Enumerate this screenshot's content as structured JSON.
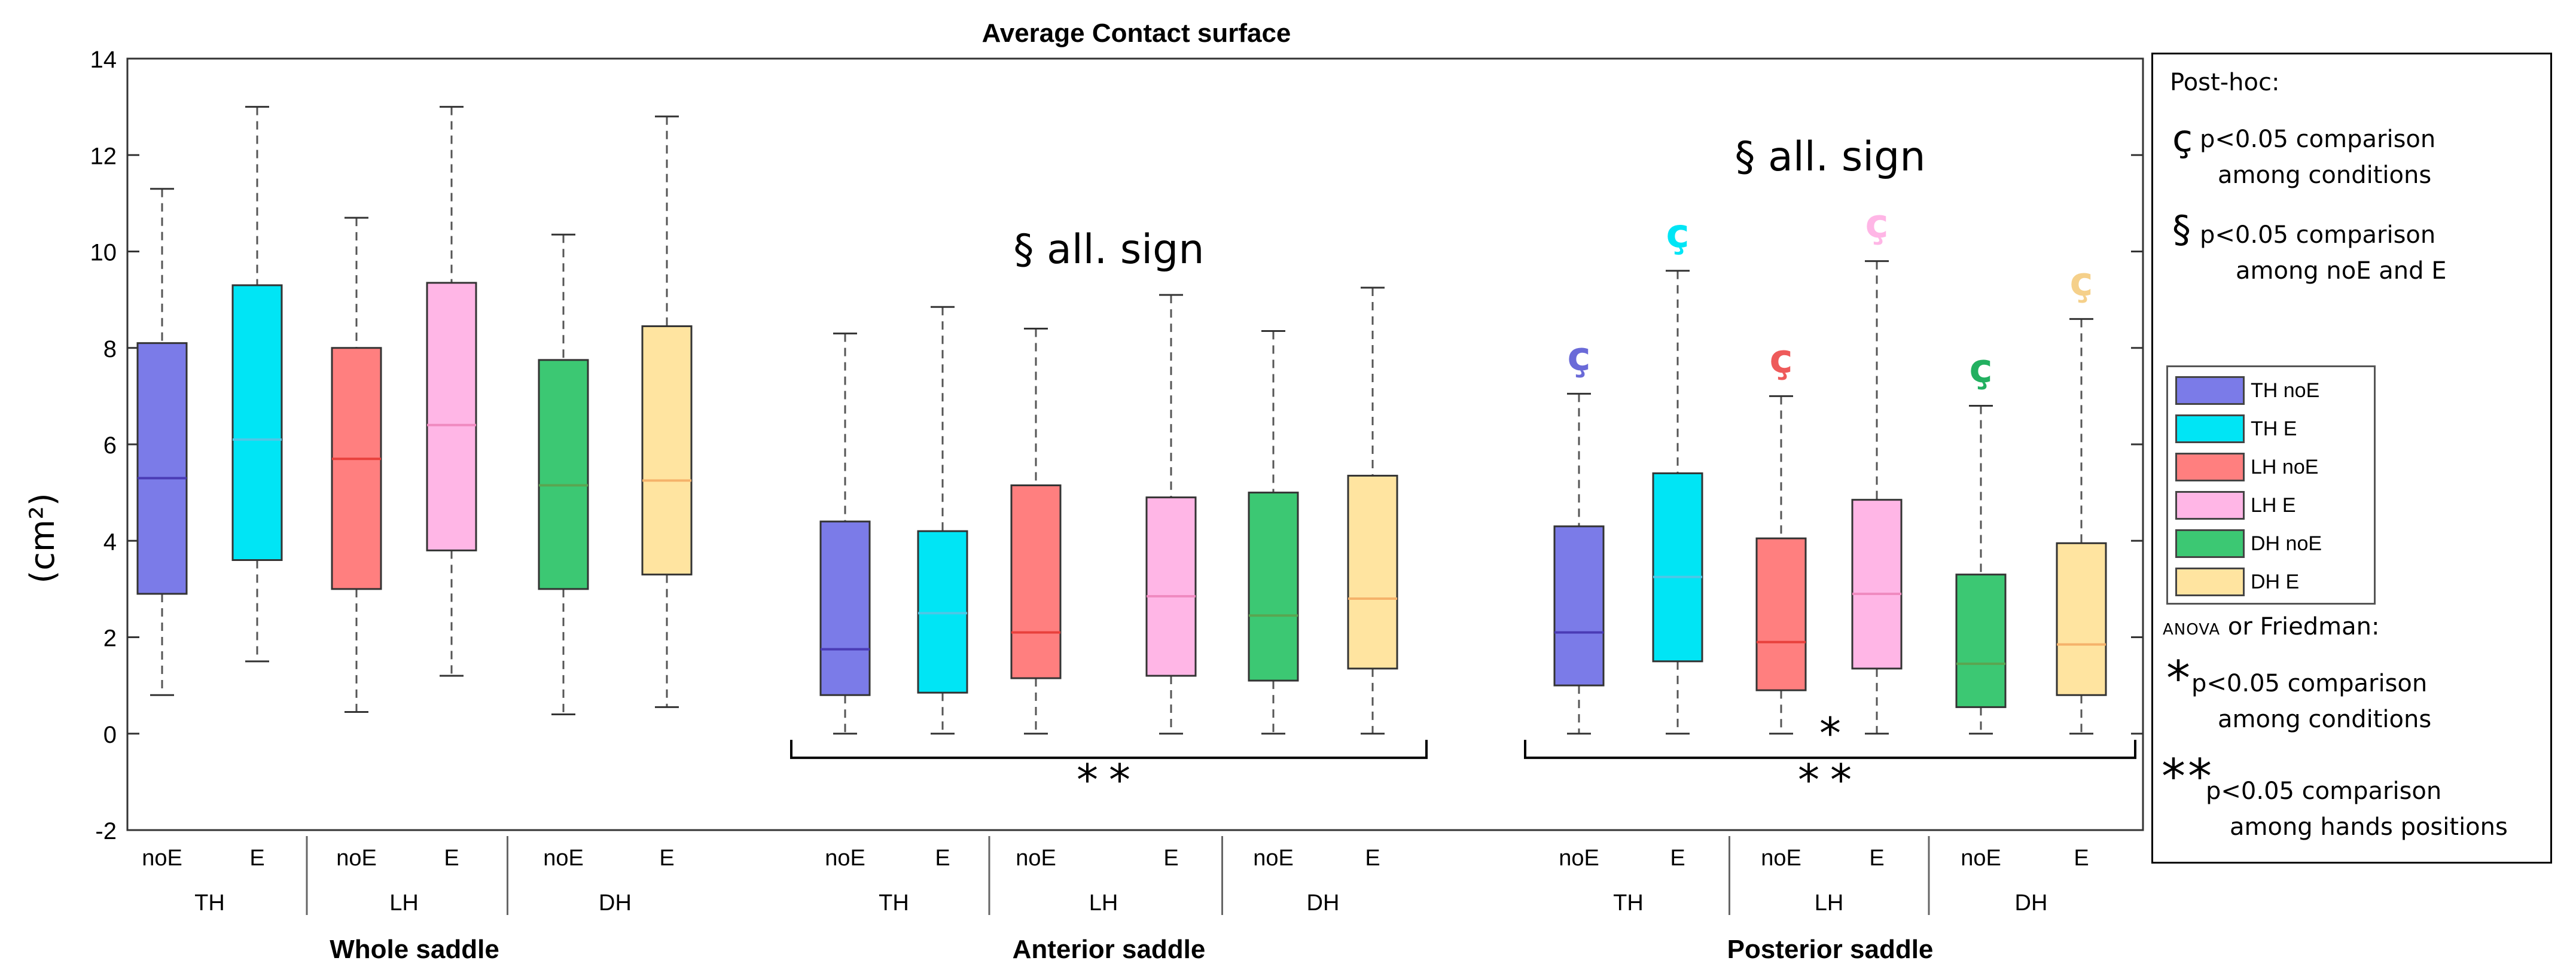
{
  "chart_data": {
    "type": "box",
    "title": "Average Contact surface",
    "ylabel": "(cm²)",
    "ylim": [
      -2,
      14
    ],
    "yticks": [
      -2,
      0,
      2,
      4,
      6,
      8,
      10,
      12,
      14
    ],
    "condition_labels": [
      "noE",
      "E"
    ],
    "position_labels": [
      "TH",
      "LH",
      "DH"
    ],
    "series_names": [
      "TH noE",
      "TH E",
      "LH noE",
      "LH E",
      "DH noE",
      "DH E"
    ],
    "series_colors": [
      "#7b7be8",
      "#00e5f5",
      "#ff7f7f",
      "#ffb6e6",
      "#3cc873",
      "#ffe4a0"
    ],
    "median_colors": [
      "#4a3bb5",
      "#4ec7e6",
      "#e8403c",
      "#f08ac0",
      "#5aa550",
      "#f5b26a"
    ],
    "groups": [
      {
        "label": "Whole saddle",
        "boxes": [
          {
            "min": 0.8,
            "q1": 2.9,
            "median": 5.3,
            "q3": 8.1,
            "max": 11.3
          },
          {
            "min": 1.5,
            "q1": 3.6,
            "median": 6.1,
            "q3": 9.3,
            "max": 13.0
          },
          {
            "min": 0.45,
            "q1": 3.0,
            "median": 5.7,
            "q3": 8.0,
            "max": 10.7
          },
          {
            "min": 1.2,
            "q1": 3.8,
            "median": 6.4,
            "q3": 9.35,
            "max": 13.0
          },
          {
            "min": 0.4,
            "q1": 3.0,
            "median": 5.15,
            "q3": 7.75,
            "max": 10.35
          },
          {
            "min": 0.55,
            "q1": 3.3,
            "median": 5.25,
            "q3": 8.45,
            "max": 12.8
          }
        ],
        "annotation": "",
        "post_hoc": [
          "",
          "",
          "",
          "",
          "",
          ""
        ],
        "bracket_marks": []
      },
      {
        "label": "Anterior saddle",
        "boxes": [
          {
            "min": 0,
            "q1": 0.8,
            "median": 1.75,
            "q3": 4.4,
            "max": 8.3
          },
          {
            "min": 0,
            "q1": 0.85,
            "median": 2.5,
            "q3": 4.2,
            "max": 8.85
          },
          {
            "min": 0,
            "q1": 1.15,
            "median": 2.1,
            "q3": 5.15,
            "max": 8.4
          },
          {
            "min": 0,
            "q1": 1.2,
            "median": 2.85,
            "q3": 4.9,
            "max": 9.1
          },
          {
            "min": 0,
            "q1": 1.1,
            "median": 2.45,
            "q3": 5.0,
            "max": 8.35
          },
          {
            "min": 0,
            "q1": 1.35,
            "median": 2.8,
            "q3": 5.35,
            "max": 9.25
          }
        ],
        "annotation": "§ all. sign",
        "post_hoc": [
          "",
          "",
          "",
          "",
          "",
          ""
        ],
        "bracket_marks": [
          "**"
        ]
      },
      {
        "label": "Posterior saddle",
        "boxes": [
          {
            "min": 0,
            "q1": 1.0,
            "median": 2.1,
            "q3": 4.3,
            "max": 7.05
          },
          {
            "min": 0,
            "q1": 1.5,
            "median": 3.25,
            "q3": 5.4,
            "max": 9.6
          },
          {
            "min": 0,
            "q1": 0.9,
            "median": 1.9,
            "q3": 4.05,
            "max": 7.0
          },
          {
            "min": 0,
            "q1": 1.35,
            "median": 2.9,
            "q3": 4.85,
            "max": 9.8
          },
          {
            "min": 0,
            "q1": 0.55,
            "median": 1.45,
            "q3": 3.3,
            "max": 6.8
          },
          {
            "min": 0,
            "q1": 0.8,
            "median": 1.85,
            "q3": 3.95,
            "max": 8.6
          }
        ],
        "annotation": "§ all. sign",
        "post_hoc": [
          "ç",
          "ç",
          "ç",
          "ç",
          "ç",
          "ç"
        ],
        "bracket_marks": [
          "*",
          "**"
        ]
      }
    ]
  },
  "legend": {
    "post_hoc_title": "Post-hoc:",
    "post_hoc_symbol": "ç",
    "post_hoc_text": [
      "p<0.05 comparison",
      "among conditions"
    ],
    "section_symbol": "§",
    "section_text": [
      "p<0.05 comparison",
      "among noE and E"
    ],
    "anova_small": "ANOVA",
    "anova_rest": " or Friedman:",
    "star1_symbol": "*",
    "star1_text": [
      "p<0.05 comparison",
      "among conditions"
    ],
    "star2_symbol": "**",
    "star2_text": [
      "p<0.05 comparison",
      "among hands positions"
    ]
  }
}
